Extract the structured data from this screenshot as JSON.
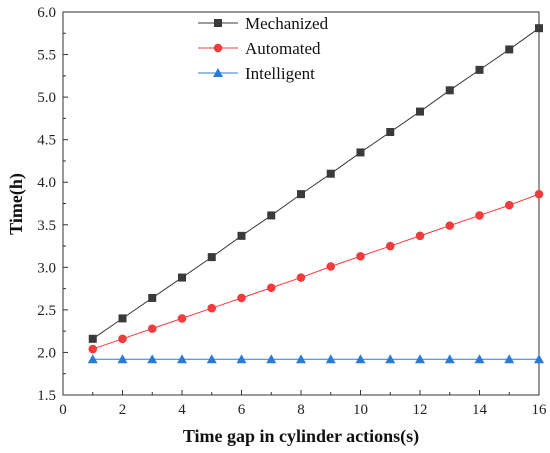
{
  "chart_data": {
    "type": "line",
    "title": "",
    "xlabel": "Time gap in cylinder actions(s)",
    "ylabel": "Time(h)",
    "xlim": [
      0,
      16
    ],
    "ylim": [
      1.5,
      6.0
    ],
    "xticks": [
      0,
      2,
      4,
      6,
      8,
      10,
      12,
      14,
      16
    ],
    "yticks": [
      1.5,
      2.0,
      2.5,
      3.0,
      3.5,
      4.0,
      4.5,
      5.0,
      5.5,
      6.0
    ],
    "xtick_labels": [
      "0",
      "2",
      "4",
      "6",
      "8",
      "10",
      "12",
      "14",
      "16"
    ],
    "ytick_labels": [
      "1.5",
      "2.0",
      "2.5",
      "3.0",
      "3.5",
      "4.0",
      "4.5",
      "5.0",
      "5.5",
      "6.0"
    ],
    "grid": false,
    "legend_position": "top-center",
    "x": [
      1,
      2,
      3,
      4,
      5,
      6,
      7,
      8,
      9,
      10,
      11,
      12,
      13,
      14,
      15,
      16
    ],
    "series": [
      {
        "name": "Mechanized",
        "color": "#3a3a3a",
        "marker": "square",
        "values": [
          2.16,
          2.4,
          2.64,
          2.88,
          3.12,
          3.37,
          3.61,
          3.86,
          4.1,
          4.35,
          4.59,
          4.83,
          5.08,
          5.32,
          5.56,
          5.81
        ]
      },
      {
        "name": "Automated",
        "color": "#f03c3c",
        "marker": "circle",
        "values": [
          2.04,
          2.16,
          2.28,
          2.4,
          2.52,
          2.64,
          2.76,
          2.88,
          3.01,
          3.13,
          3.25,
          3.37,
          3.49,
          3.61,
          3.73,
          3.86
        ]
      },
      {
        "name": "Intelligent",
        "color": "#2a7bd8",
        "marker": "triangle",
        "values": [
          1.92,
          1.92,
          1.92,
          1.92,
          1.92,
          1.92,
          1.92,
          1.92,
          1.92,
          1.92,
          1.92,
          1.92,
          1.92,
          1.92,
          1.92,
          1.92
        ]
      }
    ]
  }
}
